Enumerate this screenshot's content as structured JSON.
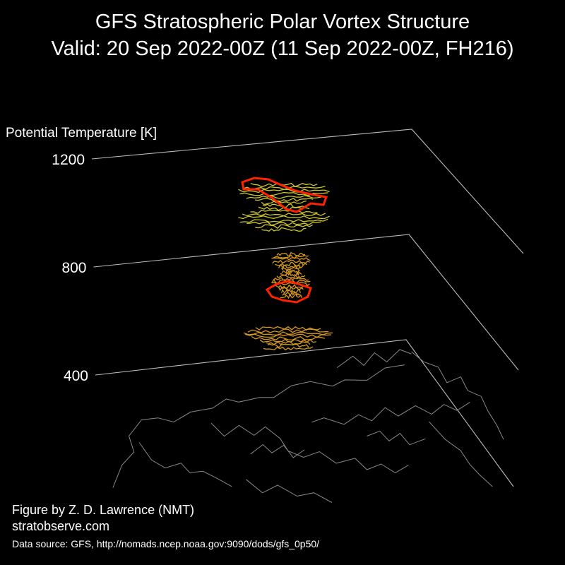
{
  "figure": {
    "title_line1": "GFS Stratospheric Polar Vortex Structure",
    "title_line2": "Valid: 20 Sep 2022-00Z  (11 Sep 2022-00Z, FH216)",
    "credit_author": "Figure by Z. D. Lawrence (NMT)",
    "credit_site": "stratobserve.com",
    "credit_source": "Data source: GFS, http://nomads.ncep.noaa.gov:9090/dods/gfs_0p50/"
  },
  "chart_data": {
    "type": "3d-isosurface",
    "zlabel": "Potential Temperature [K]",
    "z_ticks": [
      400,
      800,
      1200
    ],
    "zlim": [
      400,
      1200
    ],
    "background": "#000000",
    "axis_color": "#bbbbbb",
    "coastline_color": "#888888",
    "colors": {
      "vortex_edge": "#ff2200",
      "upper_layer": "#d8d030",
      "lower_layer": "#e0a020"
    },
    "vortex_blobs": [
      {
        "name": "",
        "theta_range": [
          1050,
          1200
        ],
        "color": "#d8d030"
      },
      {
        "name": "",
        "theta_range": [
          600,
          900
        ],
        "color": "#e0a020"
      }
    ]
  }
}
